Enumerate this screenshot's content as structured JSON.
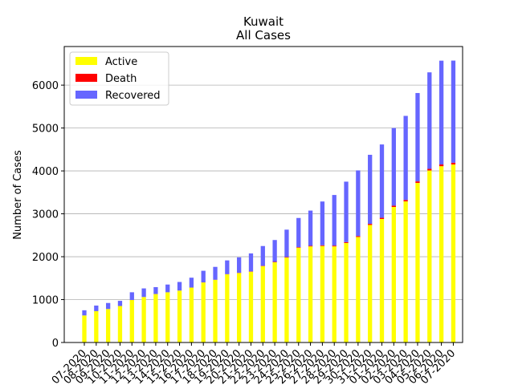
{
  "chart_data": {
    "type": "bar",
    "stacked": true,
    "title": "Kuwait",
    "subtitle": "All Cases",
    "ylabel": "Number of Cases",
    "xlabel": "",
    "ylim": [
      0,
      6900
    ],
    "yticks": [
      0,
      1000,
      2000,
      3000,
      4000,
      5000,
      6000
    ],
    "grid": "y",
    "legend": {
      "placement": "top-left"
    },
    "categories": [
      "07-2020",
      "08-2020",
      "09-2020",
      "10-2020",
      "11-2020",
      "12-2020",
      "13-2020",
      "14-2020",
      "15-2020",
      "16-2020",
      "17-2020",
      "18-2020",
      "19-2020",
      "20-2020",
      "21-2020",
      "22-2020",
      "23-2020",
      "24-2020",
      "25-2020",
      "26-2020",
      "27-2020",
      "28-2020",
      "29-2020",
      "30-2020",
      "31-2020",
      "01-2020",
      "02-2020",
      "03-2020",
      "04-2020",
      "05-2020",
      "06-2020",
      "07-2020"
    ],
    "series": [
      {
        "name": "Active",
        "color": "#ffff00",
        "values": [
          630,
          730,
          780,
          850,
          990,
          1060,
          1130,
          1170,
          1210,
          1280,
          1400,
          1460,
          1590,
          1620,
          1650,
          1780,
          1870,
          1980,
          2210,
          2240,
          2250,
          2240,
          2320,
          2460,
          2740,
          2880,
          3160,
          3290,
          3720,
          4010,
          4110,
          4150
        ]
      },
      {
        "name": "Death",
        "color": "#ff0000",
        "values": [
          1,
          1,
          1,
          1,
          1,
          1,
          1,
          1,
          1,
          1,
          2,
          3,
          4,
          5,
          7,
          9,
          9,
          11,
          13,
          15,
          17,
          19,
          20,
          22,
          26,
          27,
          30,
          33,
          36,
          38,
          40,
          42
        ]
      },
      {
        "name": "Recovered",
        "color": "#6666ff",
        "values": [
          120,
          130,
          140,
          120,
          180,
          200,
          160,
          180,
          200,
          230,
          270,
          300,
          320,
          360,
          420,
          460,
          510,
          640,
          680,
          820,
          1020,
          1180,
          1410,
          1530,
          1610,
          1710,
          1810,
          1960,
          2060,
          2250,
          2420,
          2380
        ]
      }
    ]
  }
}
